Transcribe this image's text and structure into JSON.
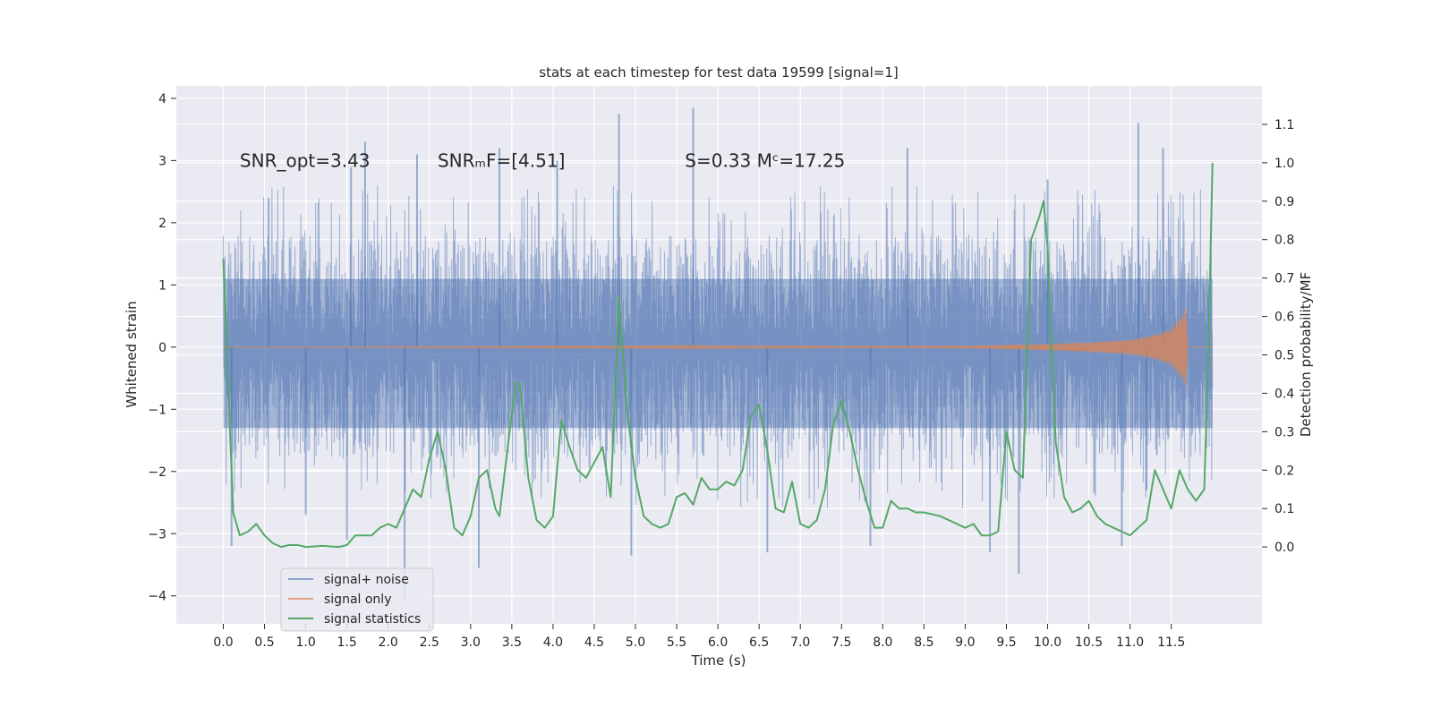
{
  "chart_data": {
    "type": "line",
    "title": "stats at each timestep for test data 19599 [signal=1]",
    "xlabel": "Time (s)",
    "ylabel_left": "Whitened strain",
    "ylabel_right": "Detection probability/MF",
    "xlim": [
      -0.57,
      12.6
    ],
    "ylim_left": [
      -4.45,
      4.2
    ],
    "ylim_right": [
      -0.2,
      1.2
    ],
    "x_ticks": [
      0.0,
      0.5,
      1.0,
      1.5,
      2.0,
      2.5,
      3.0,
      3.5,
      4.0,
      4.5,
      5.0,
      5.5,
      6.0,
      6.5,
      7.0,
      7.5,
      8.0,
      8.5,
      9.0,
      9.5,
      10.0,
      10.5,
      11.0,
      11.5
    ],
    "x_tick_labels": [
      "0.0",
      "0.5",
      "1.0",
      "1.5",
      "2.0",
      "2.5",
      "3.0",
      "3.5",
      "4.0",
      "4.5",
      "5.0",
      "5.5",
      "6.0",
      "6.5",
      "7.0",
      "7.5",
      "8.0",
      "8.5",
      "9.0",
      "9.5",
      "10.0",
      "10.5",
      "11.0",
      "11.5"
    ],
    "y_ticks_left": [
      -4,
      -3,
      -2,
      -1,
      0,
      1,
      2,
      3,
      4
    ],
    "y_tick_labels_left": [
      "−4",
      "−3",
      "−2",
      "−1",
      "0",
      "1",
      "2",
      "3",
      "4"
    ],
    "y_ticks_right": [
      0.0,
      0.1,
      0.2,
      0.3,
      0.4,
      0.5,
      0.6,
      0.7,
      0.8,
      0.9,
      1.0,
      1.1
    ],
    "y_tick_labels_right": [
      "0.0",
      "0.1",
      "0.2",
      "0.3",
      "0.4",
      "0.5",
      "0.6",
      "0.7",
      "0.8",
      "0.9",
      "1.0",
      "1.1"
    ],
    "grid": true,
    "legend_position": "lower-left",
    "colors": {
      "background": "#eaeaf2",
      "grid": "#ffffff",
      "noise": "#4c72b0",
      "signal": "#dd8452",
      "stats": "#55a868"
    },
    "annotations": [
      {
        "text": "SNR_opt=3.43",
        "x": 0.2,
        "y": 3.0
      },
      {
        "text": "SNRₘF=[4.51]",
        "x": 2.6,
        "y": 3.0
      },
      {
        "text": "S=0.33   Mᶜ=17.25",
        "x": 5.6,
        "y": 3.0
      }
    ],
    "series": [
      {
        "name": "signal+ noise",
        "axis": "left",
        "x_range": [
          0.0,
          12.0
        ],
        "core_amplitude": [
          -1.3,
          1.1
        ],
        "peaks": [
          {
            "x": 0.55,
            "y": 2.4
          },
          {
            "x": 1.55,
            "y": 2.9
          },
          {
            "x": 1.72,
            "y": 3.3
          },
          {
            "x": 2.35,
            "y": 3.1
          },
          {
            "x": 3.35,
            "y": 3.2
          },
          {
            "x": 4.05,
            "y": 3.0
          },
          {
            "x": 4.8,
            "y": 3.75
          },
          {
            "x": 5.7,
            "y": 3.85
          },
          {
            "x": 8.3,
            "y": 3.2
          },
          {
            "x": 10.0,
            "y": 2.7
          },
          {
            "x": 11.1,
            "y": 3.6
          },
          {
            "x": 11.4,
            "y": 3.2
          }
        ],
        "troughs": [
          {
            "x": 0.1,
            "y": -3.2
          },
          {
            "x": 1.0,
            "y": -2.7
          },
          {
            "x": 1.5,
            "y": -3.1
          },
          {
            "x": 2.2,
            "y": -4.1
          },
          {
            "x": 3.1,
            "y": -3.55
          },
          {
            "x": 4.95,
            "y": -3.35
          },
          {
            "x": 6.6,
            "y": -3.3
          },
          {
            "x": 7.85,
            "y": -3.2
          },
          {
            "x": 9.3,
            "y": -3.3
          },
          {
            "x": 9.65,
            "y": -3.65
          },
          {
            "x": 10.9,
            "y": -3.2
          },
          {
            "x": 11.2,
            "y": -2.3
          }
        ]
      },
      {
        "name": "signal only",
        "axis": "left",
        "x": [
          0.0,
          9.0,
          10.0,
          10.5,
          11.0,
          11.3,
          11.5,
          11.62,
          11.68,
          11.7,
          12.0
        ],
        "envelope": [
          0.0,
          0.02,
          0.05,
          0.08,
          0.12,
          0.2,
          0.3,
          0.5,
          0.68,
          0.0,
          0.0
        ]
      },
      {
        "name": "signal statistics",
        "axis": "right",
        "x": [
          0.0,
          0.12,
          0.2,
          0.3,
          0.4,
          0.5,
          0.6,
          0.7,
          0.8,
          0.9,
          1.0,
          1.2,
          1.4,
          1.5,
          1.6,
          1.7,
          1.8,
          1.9,
          2.0,
          2.1,
          2.2,
          2.3,
          2.4,
          2.5,
          2.6,
          2.7,
          2.8,
          2.9,
          3.0,
          3.1,
          3.2,
          3.3,
          3.35,
          3.45,
          3.55,
          3.6,
          3.7,
          3.8,
          3.9,
          4.0,
          4.1,
          4.2,
          4.3,
          4.4,
          4.5,
          4.6,
          4.7,
          4.8,
          4.9,
          5.0,
          5.1,
          5.2,
          5.3,
          5.4,
          5.5,
          5.6,
          5.7,
          5.8,
          5.9,
          6.0,
          6.1,
          6.2,
          6.3,
          6.4,
          6.5,
          6.6,
          6.7,
          6.8,
          6.9,
          7.0,
          7.1,
          7.2,
          7.3,
          7.4,
          7.5,
          7.6,
          7.7,
          7.8,
          7.9,
          8.0,
          8.1,
          8.2,
          8.3,
          8.4,
          8.5,
          8.7,
          8.9,
          9.0,
          9.1,
          9.2,
          9.3,
          9.4,
          9.5,
          9.6,
          9.7,
          9.8,
          9.9,
          9.95,
          10.0,
          10.05,
          10.1,
          10.2,
          10.3,
          10.4,
          10.5,
          10.6,
          10.7,
          10.8,
          10.9,
          11.0,
          11.1,
          11.2,
          11.3,
          11.4,
          11.5,
          11.6,
          11.7,
          11.8,
          11.9,
          11.95,
          12.0
        ],
        "values": [
          0.75,
          0.09,
          0.03,
          0.04,
          0.06,
          0.03,
          0.01,
          0.0,
          0.005,
          0.005,
          0.0,
          0.003,
          0.0,
          0.005,
          0.03,
          0.03,
          0.03,
          0.05,
          0.06,
          0.05,
          0.1,
          0.15,
          0.13,
          0.23,
          0.3,
          0.2,
          0.05,
          0.03,
          0.08,
          0.18,
          0.2,
          0.1,
          0.08,
          0.26,
          0.43,
          0.42,
          0.18,
          0.07,
          0.05,
          0.08,
          0.33,
          0.26,
          0.2,
          0.18,
          0.22,
          0.26,
          0.13,
          0.65,
          0.35,
          0.18,
          0.08,
          0.06,
          0.05,
          0.06,
          0.13,
          0.14,
          0.11,
          0.18,
          0.15,
          0.15,
          0.17,
          0.16,
          0.2,
          0.34,
          0.37,
          0.25,
          0.1,
          0.09,
          0.17,
          0.06,
          0.05,
          0.07,
          0.15,
          0.32,
          0.38,
          0.3,
          0.2,
          0.12,
          0.05,
          0.05,
          0.12,
          0.1,
          0.1,
          0.09,
          0.09,
          0.08,
          0.06,
          0.05,
          0.06,
          0.03,
          0.03,
          0.04,
          0.3,
          0.2,
          0.18,
          0.8,
          0.86,
          0.9,
          0.78,
          0.5,
          0.27,
          0.13,
          0.09,
          0.1,
          0.12,
          0.08,
          0.06,
          0.05,
          0.04,
          0.03,
          0.05,
          0.07,
          0.2,
          0.15,
          0.1,
          0.2,
          0.15,
          0.12,
          0.15,
          0.5,
          1.0
        ]
      }
    ]
  }
}
